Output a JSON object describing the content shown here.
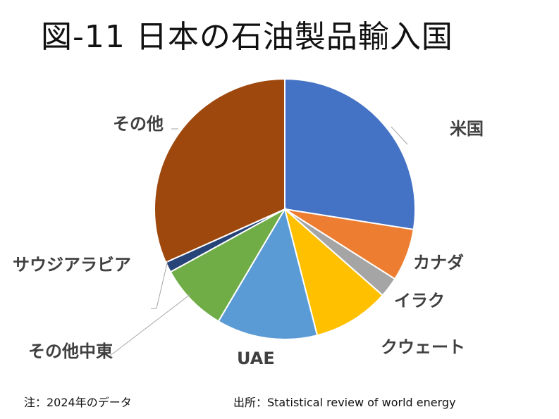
{
  "title": "図-11 日本の石油製品輸入国",
  "chart_data": {
    "type": "pie",
    "title": "図-11 日本の石油製品輸入国",
    "categories": [
      "米国",
      "カナダ",
      "イラク",
      "クウェート",
      "UAE",
      "その他中東",
      "サウジアラビア",
      "その他"
    ],
    "values": [
      27.5,
      6.5,
      2.5,
      9.5,
      12.5,
      8.5,
      1.3,
      31.7
    ],
    "colors": [
      "#4472C4",
      "#ED7D31",
      "#A5A5A5",
      "#FFC000",
      "#5B9BD5",
      "#70AD47",
      "#264478",
      "#9E480E"
    ],
    "legend": "none",
    "start": "12 o'clock, clockwise"
  },
  "notes": {
    "left": "注：2024年のデータ",
    "right": "出所：Statistical  review of world energy"
  }
}
